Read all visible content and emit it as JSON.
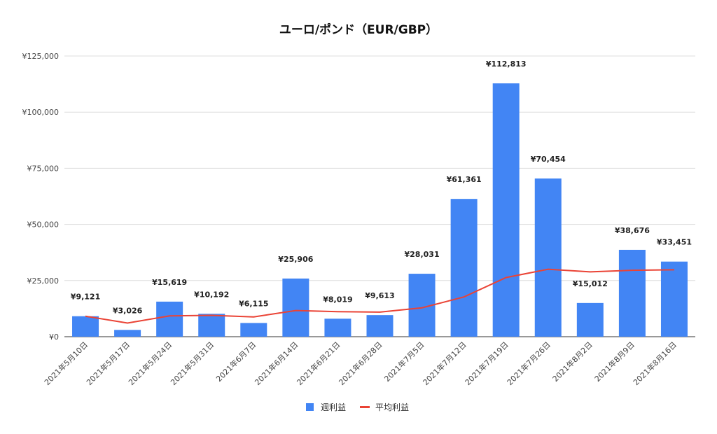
{
  "chart_data": {
    "type": "bar",
    "title": "ユーロ/ポンド（EUR/GBP）",
    "xlabel": "",
    "ylabel": "",
    "ylim": [
      0,
      125000
    ],
    "yticks": [
      0,
      25000,
      50000,
      75000,
      100000,
      125000
    ],
    "ytick_labels": [
      "¥0",
      "¥25,000",
      "¥50,000",
      "¥75,000",
      "¥100,000",
      "¥125,000"
    ],
    "grid": true,
    "legend_position": "bottom",
    "categories": [
      "2021年5月10日",
      "2021年5月17日",
      "2021年5月24日",
      "2021年5月31日",
      "2021年6月7日",
      "2021年6月14日",
      "2021年6月21日",
      "2021年6月28日",
      "2021年7月5日",
      "2021年7月12日",
      "2021年7月19日",
      "2021年7月26日",
      "2021年8月2日",
      "2021年8月9日",
      "2021年8月16日"
    ],
    "series": [
      {
        "name": "週利益",
        "type": "bar",
        "color": "#4285f4",
        "values": [
          9121,
          3026,
          15619,
          10192,
          6115,
          25906,
          8019,
          9613,
          28031,
          61361,
          112813,
          70454,
          15012,
          38676,
          33451
        ],
        "data_labels": [
          "¥9,121",
          "¥3,026",
          "¥15,619",
          "¥10,192",
          "¥6,115",
          "¥25,906",
          "¥8,019",
          "¥9,613",
          "¥28,031",
          "¥61,361",
          "¥112,813",
          "¥70,454",
          "¥15,012",
          "¥38,676",
          "¥33,451"
        ]
      },
      {
        "name": "平均利益",
        "type": "line",
        "color": "#ea4335",
        "values": [
          9121,
          6074,
          9255,
          9490,
          8815,
          11663,
          11143,
          10951,
          12849,
          17700,
          26347,
          30023,
          28868,
          29568,
          29827
        ]
      }
    ]
  }
}
